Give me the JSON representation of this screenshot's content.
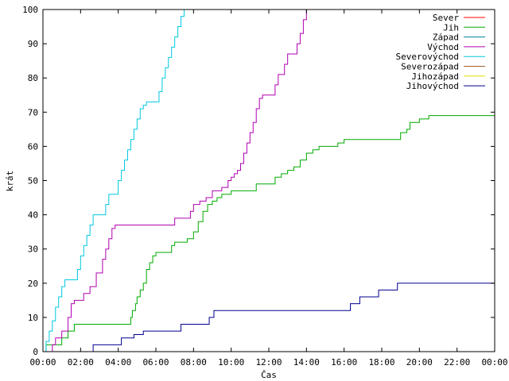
{
  "chart_data": {
    "type": "line",
    "xlabel": "Čas",
    "ylabel": "krát",
    "xlim": [
      0,
      1440
    ],
    "ylim": [
      0,
      100
    ],
    "x_tick_labels": [
      "00:00",
      "02:00",
      "04:00",
      "06:00",
      "08:00",
      "10:00",
      "12:00",
      "14:00",
      "16:00",
      "18:00",
      "20:00",
      "22:00",
      "00:00"
    ],
    "y_tick_labels": [
      "0",
      "10",
      "20",
      "30",
      "40",
      "50",
      "60",
      "70",
      "80",
      "90",
      "100"
    ],
    "legend_position": "top-right",
    "grid": false,
    "series": [
      {
        "name": "Sever",
        "color": "#ff0000",
        "points": []
      },
      {
        "name": "Jih",
        "color": "#00aa00",
        "points": [
          [
            0,
            0
          ],
          [
            10,
            2
          ],
          [
            60,
            4
          ],
          [
            80,
            6
          ],
          [
            100,
            8
          ],
          [
            140,
            8
          ],
          [
            240,
            8
          ],
          [
            270,
            8
          ],
          [
            280,
            10
          ],
          [
            285,
            12
          ],
          [
            295,
            14
          ],
          [
            300,
            16
          ],
          [
            310,
            18
          ],
          [
            320,
            20
          ],
          [
            330,
            24
          ],
          [
            340,
            26
          ],
          [
            350,
            28
          ],
          [
            360,
            29
          ],
          [
            410,
            31
          ],
          [
            420,
            32
          ],
          [
            460,
            33
          ],
          [
            480,
            35
          ],
          [
            495,
            38
          ],
          [
            510,
            41
          ],
          [
            525,
            43
          ],
          [
            540,
            44
          ],
          [
            555,
            45
          ],
          [
            570,
            46
          ],
          [
            600,
            47
          ],
          [
            630,
            47
          ],
          [
            680,
            49
          ],
          [
            740,
            51
          ],
          [
            760,
            52
          ],
          [
            780,
            53
          ],
          [
            800,
            54
          ],
          [
            820,
            56
          ],
          [
            840,
            58
          ],
          [
            860,
            59
          ],
          [
            880,
            60
          ],
          [
            940,
            61
          ],
          [
            960,
            62
          ],
          [
            1000,
            62
          ],
          [
            1080,
            62
          ],
          [
            1100,
            62
          ],
          [
            1120,
            62
          ],
          [
            1140,
            64
          ],
          [
            1160,
            65
          ],
          [
            1170,
            67
          ],
          [
            1200,
            68
          ],
          [
            1230,
            69
          ],
          [
            1440,
            69
          ]
        ]
      },
      {
        "name": "Západ",
        "color": "#0080a0",
        "points": []
      },
      {
        "name": "Východ",
        "color": "#b000b0",
        "points": [
          [
            0,
            0
          ],
          [
            30,
            2
          ],
          [
            40,
            4
          ],
          [
            60,
            6
          ],
          [
            80,
            10
          ],
          [
            90,
            14
          ],
          [
            100,
            15
          ],
          [
            130,
            17
          ],
          [
            150,
            19
          ],
          [
            170,
            23
          ],
          [
            190,
            27
          ],
          [
            200,
            30
          ],
          [
            210,
            33
          ],
          [
            220,
            36
          ],
          [
            230,
            37
          ],
          [
            270,
            37
          ],
          [
            360,
            37
          ],
          [
            400,
            37
          ],
          [
            420,
            39
          ],
          [
            470,
            41
          ],
          [
            480,
            43
          ],
          [
            500,
            44
          ],
          [
            520,
            45
          ],
          [
            540,
            47
          ],
          [
            560,
            47
          ],
          [
            570,
            48
          ],
          [
            590,
            50
          ],
          [
            600,
            51
          ],
          [
            610,
            52
          ],
          [
            620,
            53
          ],
          [
            630,
            55
          ],
          [
            640,
            58
          ],
          [
            650,
            61
          ],
          [
            660,
            64
          ],
          [
            670,
            67
          ],
          [
            680,
            71
          ],
          [
            690,
            74
          ],
          [
            700,
            75
          ],
          [
            730,
            75
          ],
          [
            740,
            78
          ],
          [
            750,
            81
          ],
          [
            770,
            84
          ],
          [
            780,
            87
          ],
          [
            800,
            87
          ],
          [
            810,
            90
          ],
          [
            820,
            93
          ],
          [
            830,
            97
          ],
          [
            840,
            100
          ]
        ]
      },
      {
        "name": "Severovýchod",
        "color": "#00c8e0",
        "points": [
          [
            0,
            0
          ],
          [
            10,
            3
          ],
          [
            20,
            6
          ],
          [
            30,
            9
          ],
          [
            40,
            13
          ],
          [
            50,
            16
          ],
          [
            60,
            19
          ],
          [
            70,
            21
          ],
          [
            100,
            21
          ],
          [
            110,
            24
          ],
          [
            120,
            28
          ],
          [
            130,
            31
          ],
          [
            140,
            34
          ],
          [
            150,
            37
          ],
          [
            160,
            40
          ],
          [
            190,
            40
          ],
          [
            200,
            43
          ],
          [
            210,
            46
          ],
          [
            230,
            46
          ],
          [
            240,
            50
          ],
          [
            250,
            53
          ],
          [
            260,
            56
          ],
          [
            270,
            59
          ],
          [
            280,
            62
          ],
          [
            290,
            65
          ],
          [
            300,
            68
          ],
          [
            310,
            71
          ],
          [
            320,
            72
          ],
          [
            330,
            73
          ],
          [
            360,
            73
          ],
          [
            370,
            76
          ],
          [
            380,
            80
          ],
          [
            390,
            83
          ],
          [
            400,
            86
          ],
          [
            410,
            89
          ],
          [
            420,
            92
          ],
          [
            430,
            95
          ],
          [
            440,
            98
          ],
          [
            450,
            100
          ]
        ]
      },
      {
        "name": "Severozápad",
        "color": "#a06030",
        "points": []
      },
      {
        "name": "Jihozápad",
        "color": "#e0e000",
        "points": []
      },
      {
        "name": "Jihovýchod",
        "color": "#000090",
        "points": [
          [
            0,
            0
          ],
          [
            150,
            0
          ],
          [
            160,
            2
          ],
          [
            240,
            2
          ],
          [
            250,
            4
          ],
          [
            280,
            4
          ],
          [
            290,
            5
          ],
          [
            320,
            6
          ],
          [
            430,
            6
          ],
          [
            440,
            8
          ],
          [
            520,
            8
          ],
          [
            530,
            10
          ],
          [
            545,
            12
          ],
          [
            840,
            12
          ],
          [
            960,
            12
          ],
          [
            980,
            14
          ],
          [
            1010,
            16
          ],
          [
            1060,
            16
          ],
          [
            1070,
            18
          ],
          [
            1120,
            18
          ],
          [
            1130,
            20
          ],
          [
            1440,
            20
          ]
        ]
      }
    ]
  }
}
